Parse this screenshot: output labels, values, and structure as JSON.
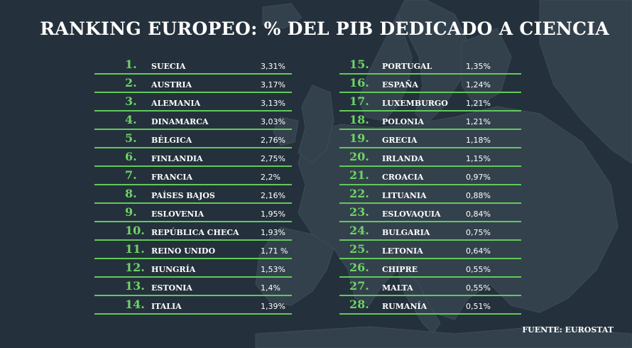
{
  "title": "RANKING EUROPEO: % DEL PIB DEDICADO A CIENCIA",
  "source": "FUENTE: EUROSTAT",
  "colors": {
    "background": "#24313c",
    "accent_green": "#63c95a",
    "map_fill": "#33414d"
  },
  "chart_data": {
    "type": "table",
    "title": "RANKING EUROPEO: % DEL PIB DEDICADO A CIENCIA",
    "columns": [
      "rank",
      "country",
      "value"
    ],
    "rows": [
      {
        "rank": "1.",
        "country": "SUECIA",
        "value": "3,31%"
      },
      {
        "rank": "2.",
        "country": "AUSTRIA",
        "value": "3,17%"
      },
      {
        "rank": "3.",
        "country": "ALEMANIA",
        "value": "3,13%"
      },
      {
        "rank": "4.",
        "country": "DINAMARCA",
        "value": "3,03%"
      },
      {
        "rank": "5.",
        "country": "BÉLGICA",
        "value": "2,76%"
      },
      {
        "rank": "6.",
        "country": "FINLANDIA",
        "value": "2,75%"
      },
      {
        "rank": "7.",
        "country": "FRANCIA",
        "value": "2,2%"
      },
      {
        "rank": "8.",
        "country": "PAÍSES BAJOS",
        "value": "2,16%"
      },
      {
        "rank": "9.",
        "country": "ESLOVENIA",
        "value": "1,95%"
      },
      {
        "rank": "10.",
        "country": "REPÚBLICA CHECA",
        "value": "1,93%"
      },
      {
        "rank": "11.",
        "country": "REINO UNIDO",
        "value": "1,71 %"
      },
      {
        "rank": "12.",
        "country": "HUNGRÍA",
        "value": "1,53%"
      },
      {
        "rank": "13.",
        "country": "ESTONIA",
        "value": "1,4%"
      },
      {
        "rank": "14.",
        "country": "ITALIA",
        "value": "1,39%"
      },
      {
        "rank": "15.",
        "country": "PORTUGAL",
        "value": "1,35%"
      },
      {
        "rank": "16.",
        "country": "ESPAÑA",
        "value": "1,24%"
      },
      {
        "rank": "17.",
        "country": "LUXEMBURGO",
        "value": "1,21%"
      },
      {
        "rank": "18.",
        "country": "POLONIA",
        "value": "1,21%"
      },
      {
        "rank": "19.",
        "country": "GRECIA",
        "value": "1,18%"
      },
      {
        "rank": "20.",
        "country": "IRLANDA",
        "value": "1,15%"
      },
      {
        "rank": "21.",
        "country": "CROACIA",
        "value": "0,97%"
      },
      {
        "rank": "22.",
        "country": "LITUANIA",
        "value": "0,88%"
      },
      {
        "rank": "23.",
        "country": "ESLOVAQUIA",
        "value": "0,84%"
      },
      {
        "rank": "24.",
        "country": "BULGARIA",
        "value": "0,75%"
      },
      {
        "rank": "25.",
        "country": "LETONIA",
        "value": "0,64%"
      },
      {
        "rank": "26.",
        "country": "CHIPRE",
        "value": "0,55%"
      },
      {
        "rank": "27.",
        "country": "MALTA",
        "value": "0,55%"
      },
      {
        "rank": "28.",
        "country": "RUMANÍA",
        "value": "0,51%"
      }
    ]
  }
}
